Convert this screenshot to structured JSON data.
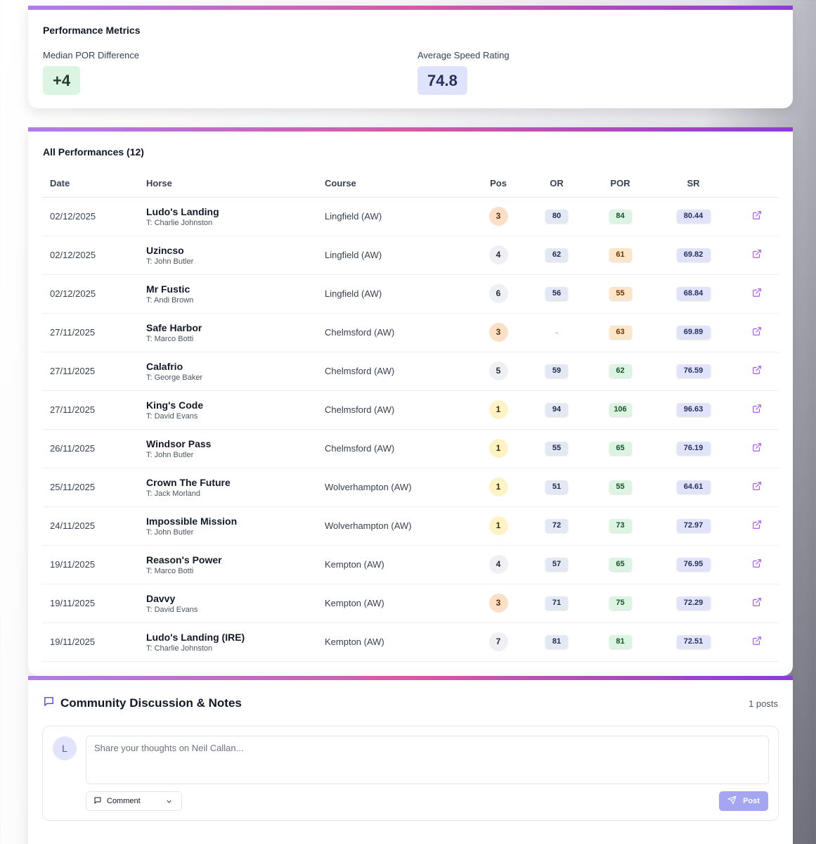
{
  "metrics": {
    "title": "Performance Metrics",
    "median_por_label": "Median POR Difference",
    "median_por_value": "+4",
    "avg_speed_label": "Average Speed Rating",
    "avg_speed_value": "74.8"
  },
  "performances": {
    "title": "All Performances (12)",
    "columns": [
      "Date",
      "Horse",
      "Course",
      "Pos",
      "OR",
      "POR",
      "SR"
    ],
    "rows": [
      {
        "date": "02/12/2025",
        "horse": "Ludo's Landing",
        "trainer": "T: Charlie Johnston",
        "course": "Lingfield (AW)",
        "pos": "3",
        "or": "80",
        "por": "84",
        "sr": "80.44"
      },
      {
        "date": "02/12/2025",
        "horse": "Uzincso",
        "trainer": "T: John Butler",
        "course": "Lingfield (AW)",
        "pos": "4",
        "or": "62",
        "por": "61",
        "sr": "69.82"
      },
      {
        "date": "02/12/2025",
        "horse": "Mr Fustic",
        "trainer": "T: Andi Brown",
        "course": "Lingfield (AW)",
        "pos": "6",
        "or": "56",
        "por": "55",
        "sr": "68.84"
      },
      {
        "date": "27/11/2025",
        "horse": "Safe Harbor",
        "trainer": "T: Marco Botti",
        "course": "Chelmsford (AW)",
        "pos": "3",
        "or": "-",
        "por": "63",
        "sr": "69.89"
      },
      {
        "date": "27/11/2025",
        "horse": "Calafrio",
        "trainer": "T: George Baker",
        "course": "Chelmsford (AW)",
        "pos": "5",
        "or": "59",
        "por": "62",
        "sr": "76.59"
      },
      {
        "date": "27/11/2025",
        "horse": "King's Code",
        "trainer": "T: David Evans",
        "course": "Chelmsford (AW)",
        "pos": "1",
        "or": "94",
        "por": "106",
        "sr": "96.63"
      },
      {
        "date": "26/11/2025",
        "horse": "Windsor Pass",
        "trainer": "T: John Butler",
        "course": "Chelmsford (AW)",
        "pos": "1",
        "or": "55",
        "por": "65",
        "sr": "76.19"
      },
      {
        "date": "25/11/2025",
        "horse": "Crown The Future",
        "trainer": "T: Jack Morland",
        "course": "Wolverhampton (AW)",
        "pos": "1",
        "or": "51",
        "por": "55",
        "sr": "64.61"
      },
      {
        "date": "24/11/2025",
        "horse": "Impossible Mission",
        "trainer": "T: John Butler",
        "course": "Wolverhampton (AW)",
        "pos": "1",
        "or": "72",
        "por": "73",
        "sr": "72.97"
      },
      {
        "date": "19/11/2025",
        "horse": "Reason's Power",
        "trainer": "T: Marco Botti",
        "course": "Kempton (AW)",
        "pos": "4",
        "or": "57",
        "por": "65",
        "sr": "76.95"
      },
      {
        "date": "19/11/2025",
        "horse": "Davvy",
        "trainer": "T: David Evans",
        "course": "Kempton (AW)",
        "pos": "3",
        "or": "71",
        "por": "75",
        "sr": "72.29"
      },
      {
        "date": "19/11/2025",
        "horse": "Ludo's Landing (IRE)",
        "trainer": "T: Charlie Johnston",
        "course": "Kempton (AW)",
        "pos": "7",
        "or": "81",
        "por": "81",
        "sr": "72.51"
      }
    ]
  },
  "community": {
    "title": "Community Discussion & Notes",
    "posts_count": "1 posts",
    "avatar_initial": "L",
    "placeholder": "Share your thoughts on Neil Callan...",
    "post_type": "Comment",
    "post_button": "Post"
  },
  "colors": {
    "accent_start": "#b07cf0",
    "accent_mid": "#d65aa4",
    "accent_end": "#8e3bd8",
    "post_button": "#a5a6f2"
  }
}
